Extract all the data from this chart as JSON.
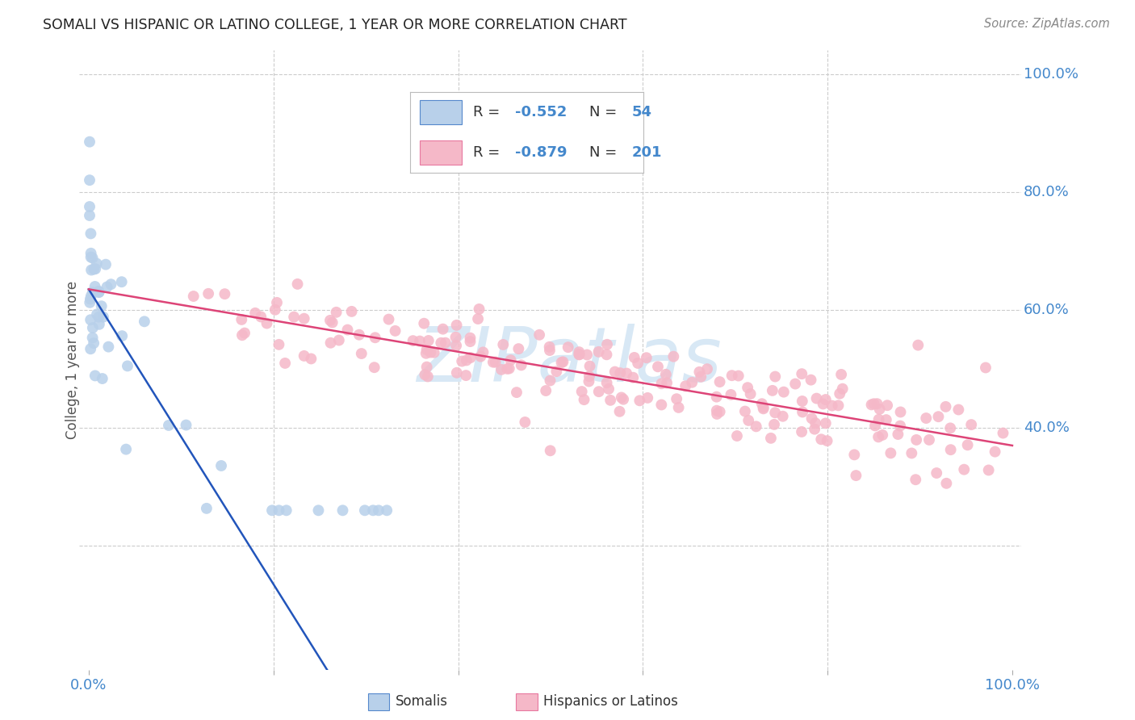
{
  "title": "SOMALI VS HISPANIC OR LATINO COLLEGE, 1 YEAR OR MORE CORRELATION CHART",
  "source": "Source: ZipAtlas.com",
  "ylabel": "College, 1 year or more",
  "legend_label1": "Somalis",
  "legend_label2": "Hispanics or Latinos",
  "R1": "-0.552",
  "N1": "54",
  "R2": "-0.879",
  "N2": "201",
  "color_blue_fill": "#b8d0ea",
  "color_pink_fill": "#f5b8c8",
  "color_blue_edge": "#5588cc",
  "color_pink_edge": "#e878a0",
  "color_blue_line": "#2255bb",
  "color_pink_line": "#dd4477",
  "color_axis_label": "#4488cc",
  "color_title": "#222222",
  "color_grid": "#cccccc",
  "color_ylabel": "#555555",
  "watermark_color": "#d8e8f5",
  "watermark_text": "ZIPatlas",
  "right_labels": [
    [
      1.0,
      "100.0%"
    ],
    [
      0.8,
      "80.0%"
    ],
    [
      0.6,
      "60.0%"
    ],
    [
      0.4,
      "40.0%"
    ]
  ],
  "xlim": [
    0.0,
    1.0
  ],
  "ylim": [
    0.0,
    1.0
  ],
  "som_seed": 42,
  "his_seed": 99
}
